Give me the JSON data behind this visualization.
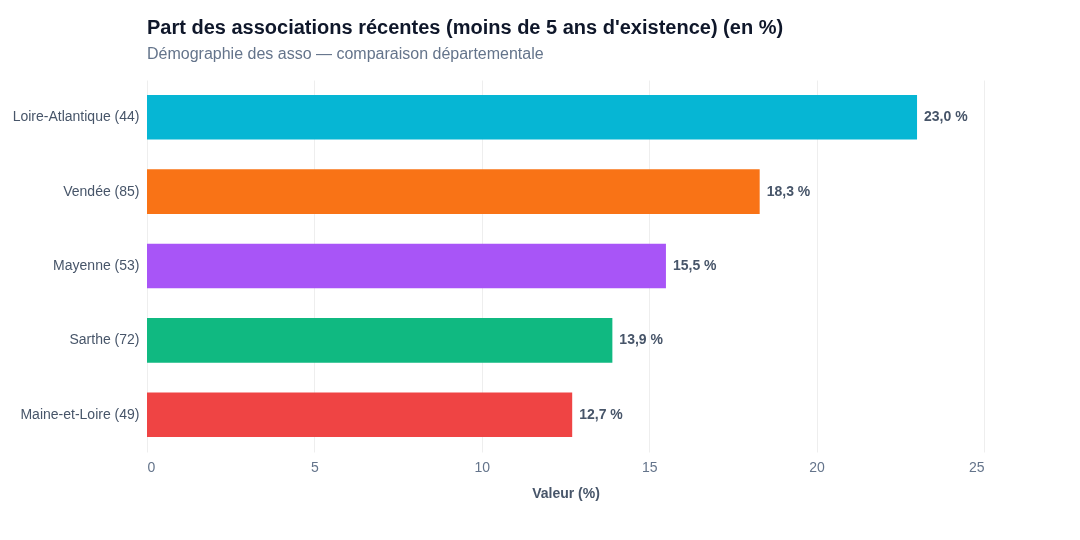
{
  "chart_data": {
    "type": "bar",
    "orientation": "horizontal",
    "title": "Part des associations récentes (moins de 5 ans d'existence) (en %)",
    "subtitle": "Démographie des asso — comparaison départementale",
    "xlabel": "Valeur (%)",
    "categories": [
      "Loire-Atlantique (44)",
      "Vendée (85)",
      "Mayenne (53)",
      "Sarthe (72)",
      "Maine-et-Loire (49)"
    ],
    "values": [
      23.0,
      18.3,
      15.5,
      13.9,
      12.7
    ],
    "value_labels": [
      "23,0 %",
      "18,3 %",
      "15,5 %",
      "13,9 %",
      "12,7 %"
    ],
    "colors": [
      "#06b6d4",
      "#f97316",
      "#a855f7",
      "#10b981",
      "#ef4444"
    ],
    "xlim": [
      0,
      25
    ],
    "xticks": [
      0,
      5,
      10,
      15,
      20,
      25
    ],
    "grid": "x",
    "legend": false
  }
}
